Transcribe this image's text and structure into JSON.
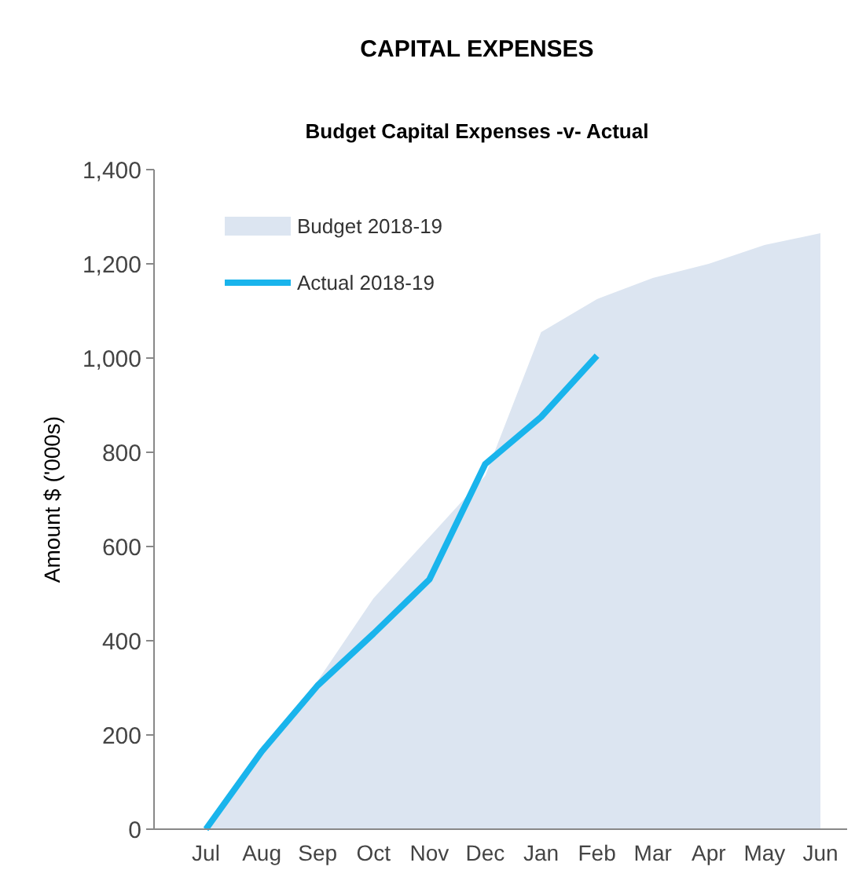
{
  "chart_data": {
    "type": "line",
    "title": "CAPITAL EXPENSES",
    "subtitle": "Budget Capital Expenses -v- Actual",
    "ylabel": "Amount $ ('000s)",
    "categories": [
      "Jul",
      "Aug",
      "Sep",
      "Oct",
      "Nov",
      "Dec",
      "Jan",
      "Feb",
      "Mar",
      "Apr",
      "May",
      "Jun"
    ],
    "series": [
      {
        "name": "Budget 2018-19",
        "type": "area",
        "color": "#dce5f1",
        "values": [
          0,
          175,
          315,
          490,
          620,
          750,
          1055,
          1125,
          1170,
          1200,
          1240,
          1265
        ]
      },
      {
        "name": "Actual 2018-19",
        "color": "#19b4ec",
        "values": [
          0,
          165,
          305,
          415,
          530,
          775,
          875,
          1005,
          null,
          null,
          null,
          null
        ]
      }
    ],
    "ylim": [
      0,
      1400
    ],
    "yticks": [
      0,
      200,
      400,
      600,
      800,
      {
        "value": 1000,
        "label": "1,000"
      },
      {
        "value": 1200,
        "label": "1,200"
      },
      {
        "value": 1400,
        "label": "1,400"
      }
    ],
    "grid": false,
    "legend": "top left"
  }
}
